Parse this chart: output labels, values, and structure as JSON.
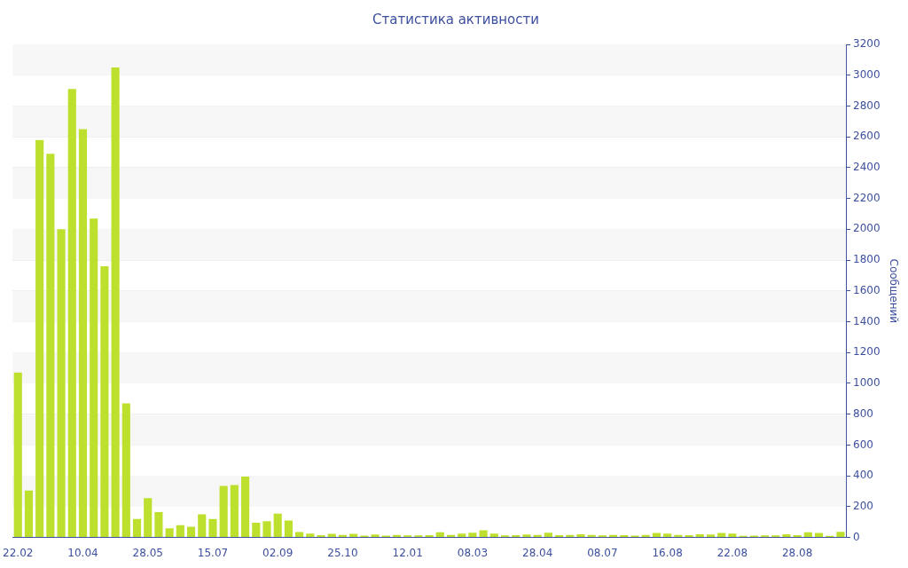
{
  "chart_data": {
    "type": "bar",
    "title": "Статистика активности",
    "ylabel": "Сообщений",
    "categories": [
      "22.02",
      null,
      null,
      null,
      null,
      null,
      "10.04",
      null,
      null,
      null,
      null,
      null,
      "28.05",
      null,
      null,
      null,
      null,
      null,
      "15.07",
      null,
      null,
      null,
      null,
      null,
      "02.09",
      null,
      null,
      null,
      null,
      null,
      "25.10",
      null,
      null,
      null,
      null,
      null,
      "12.01",
      null,
      null,
      null,
      null,
      null,
      "08.03",
      null,
      null,
      null,
      null,
      null,
      "28.04",
      null,
      null,
      null,
      null,
      null,
      "08.07",
      null,
      null,
      null,
      null,
      null,
      "16.08",
      null,
      null,
      null,
      null,
      null,
      "22.08",
      null,
      null,
      null,
      null,
      null,
      "28.08",
      null,
      null,
      null,
      null
    ],
    "values": [
      1070,
      305,
      2580,
      2490,
      2000,
      2910,
      2650,
      2070,
      1760,
      3050,
      870,
      120,
      255,
      165,
      60,
      80,
      70,
      150,
      120,
      335,
      340,
      395,
      95,
      105,
      155,
      110,
      35,
      25,
      15,
      23,
      17,
      23,
      12,
      19,
      12,
      17,
      14,
      14,
      15,
      33,
      17,
      25,
      31,
      46,
      25,
      14,
      15,
      19,
      17,
      31,
      15,
      17,
      21,
      17,
      14,
      17,
      15,
      12,
      17,
      29,
      25,
      17,
      15,
      21,
      19,
      29,
      25,
      10,
      12,
      14,
      14,
      21,
      15,
      33,
      29,
      10,
      37
    ],
    "color": "#bde02f",
    "ylim": [
      0,
      3200
    ],
    "yticks": [
      0,
      200,
      400,
      600,
      800,
      1000,
      1200,
      1400,
      1600,
      1800,
      2000,
      2200,
      2400,
      2600,
      2800,
      3000,
      3200
    ],
    "grid": "y",
    "legend": false
  }
}
